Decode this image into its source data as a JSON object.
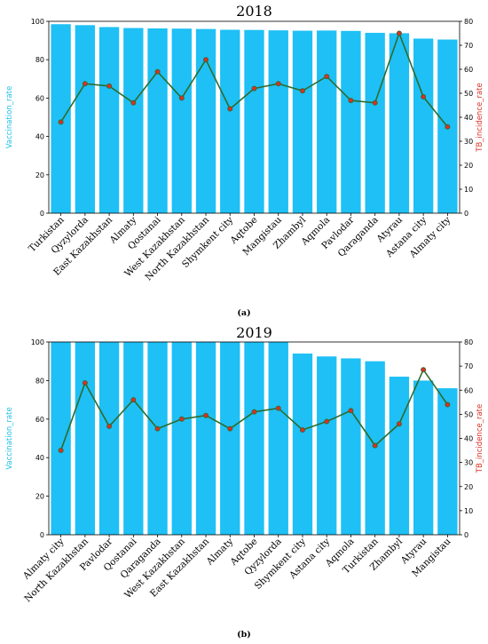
{
  "chart_data": [
    {
      "type": "bar",
      "panel_label": "(a)",
      "title": "2018",
      "ylabel": "Vaccination_rate",
      "y2label": "TB_incidence_rate",
      "ylim": [
        0,
        100
      ],
      "y2lim": [
        0,
        80
      ],
      "yticks": [
        "0",
        "20",
        "40",
        "60",
        "80",
        "100"
      ],
      "y2ticks": [
        "0",
        "10",
        "20",
        "30",
        "40",
        "50",
        "60",
        "70",
        "80"
      ],
      "categories": [
        "Turkistan",
        "Qyzylorda",
        "East Kazakhstan",
        "Almaty",
        "Qostanai",
        "West Kazakhstan",
        "North Kazakhstan",
        "Shymkent city",
        "Aqtobe",
        "Mangistau",
        "Zhambyl",
        "Aqmola",
        "Pavlodar",
        "Qaraganda",
        "Atyrau",
        "Astana city",
        "Almaty city"
      ],
      "series": [
        {
          "name": "Vaccination_rate",
          "axis": "left",
          "kind": "bar",
          "color": "#1ec0f5",
          "values": [
            98.5,
            98,
            97,
            96.5,
            96.3,
            96.2,
            96,
            95.6,
            95.5,
            95.3,
            95.1,
            95.2,
            95,
            94,
            93.8,
            91,
            90.5
          ]
        },
        {
          "name": "TB_incidence_rate",
          "axis": "right",
          "kind": "line",
          "color": "#2e6b2e",
          "marker_color": "#d93025",
          "values": [
            38,
            54,
            53,
            46,
            59,
            48,
            64,
            43.5,
            52,
            54,
            51,
            57,
            47,
            46,
            75,
            48.5,
            36
          ]
        }
      ]
    },
    {
      "type": "bar",
      "panel_label": "(b)",
      "title": "2019",
      "ylabel": "Vaccination_rate",
      "y2label": "TB_incidence_rate",
      "ylim": [
        0,
        100
      ],
      "y2lim": [
        0,
        80
      ],
      "yticks": [
        "0",
        "20",
        "40",
        "60",
        "80",
        "100"
      ],
      "y2ticks": [
        "0",
        "10",
        "20",
        "30",
        "40",
        "50",
        "60",
        "70",
        "80"
      ],
      "categories": [
        "Almaty city",
        "North Kazakhstan",
        "Pavlodar",
        "Qostanai",
        "Qaraganda",
        "West Kazakhstan",
        "East Kazakhstan",
        "Almaty",
        "Aqtobe",
        "Qyzylorda",
        "Shymkent city",
        "Astana city",
        "Aqmola",
        "Turkistan",
        "Zhambyl",
        "Atyrau",
        "Mangistau"
      ],
      "series": [
        {
          "name": "Vaccination_rate",
          "axis": "left",
          "kind": "bar",
          "color": "#1ec0f5",
          "values": [
            100,
            100,
            100,
            100,
            100,
            100,
            100,
            100,
            100,
            100,
            94,
            92.5,
            91.5,
            90,
            82,
            80,
            76
          ]
        },
        {
          "name": "TB_incidence_rate",
          "axis": "right",
          "kind": "line",
          "color": "#2e6b2e",
          "marker_color": "#d93025",
          "values": [
            35,
            63,
            45,
            56,
            44,
            48,
            49.5,
            44,
            51,
            52.5,
            43.5,
            47,
            51.5,
            37,
            46,
            68.5,
            54
          ]
        }
      ]
    }
  ]
}
